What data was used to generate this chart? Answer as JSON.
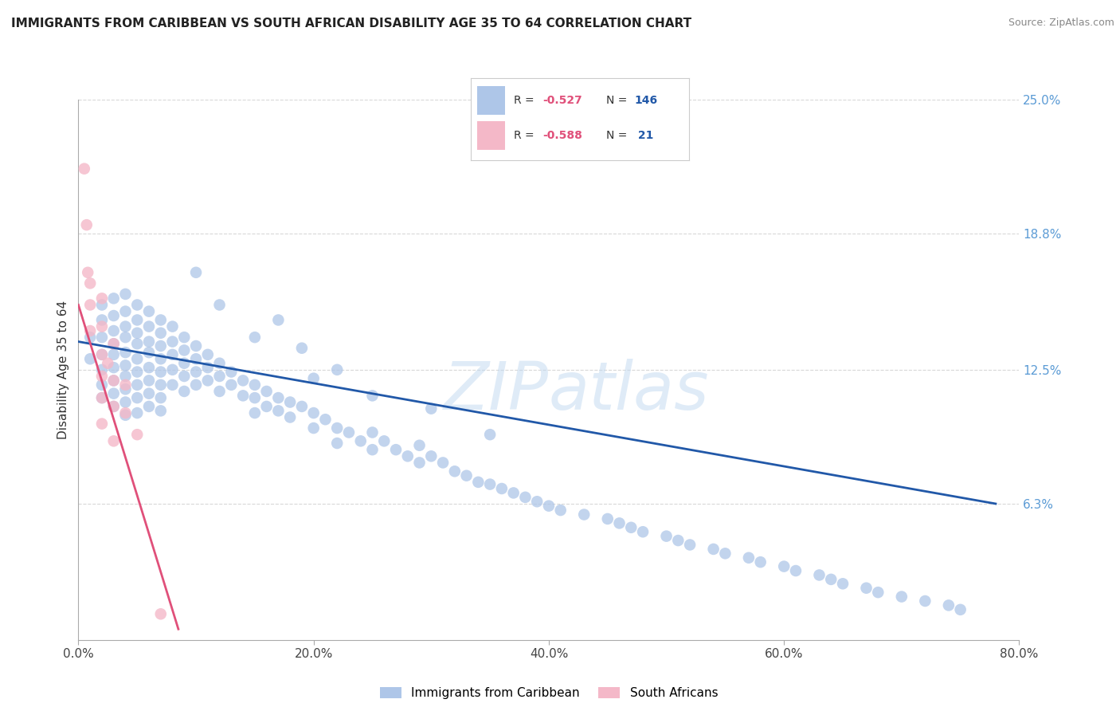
{
  "title": "IMMIGRANTS FROM CARIBBEAN VS SOUTH AFRICAN DISABILITY AGE 35 TO 64 CORRELATION CHART",
  "source": "Source: ZipAtlas.com",
  "ylabel": "Disability Age 35 to 64",
  "xlim": [
    0.0,
    0.8
  ],
  "ylim": [
    0.0,
    0.25
  ],
  "xtick_labels": [
    "0.0%",
    "20.0%",
    "40.0%",
    "60.0%",
    "80.0%"
  ],
  "xtick_vals": [
    0.0,
    0.2,
    0.4,
    0.6,
    0.8
  ],
  "ytick_labels_right": [
    "6.3%",
    "12.5%",
    "18.8%",
    "25.0%"
  ],
  "ytick_vals_right": [
    0.063,
    0.125,
    0.188,
    0.25
  ],
  "blue_R": -0.527,
  "blue_N": 146,
  "pink_R": -0.588,
  "pink_N": 21,
  "blue_color": "#aec6e8",
  "blue_line_color": "#2158a8",
  "pink_color": "#f4b8c8",
  "pink_line_color": "#e0507a",
  "legend_label_blue": "Immigrants from Caribbean",
  "legend_label_pink": "South Africans",
  "background_color": "#ffffff",
  "blue_line_x0": 0.0,
  "blue_line_y0": 0.138,
  "blue_line_x1": 0.78,
  "blue_line_y1": 0.063,
  "pink_line_x0": 0.0,
  "pink_line_y0": 0.155,
  "pink_line_x1": 0.085,
  "pink_line_y1": 0.005,
  "blue_scatter_x": [
    0.01,
    0.01,
    0.02,
    0.02,
    0.02,
    0.02,
    0.02,
    0.02,
    0.02,
    0.03,
    0.03,
    0.03,
    0.03,
    0.03,
    0.03,
    0.03,
    0.03,
    0.03,
    0.04,
    0.04,
    0.04,
    0.04,
    0.04,
    0.04,
    0.04,
    0.04,
    0.04,
    0.04,
    0.05,
    0.05,
    0.05,
    0.05,
    0.05,
    0.05,
    0.05,
    0.05,
    0.05,
    0.06,
    0.06,
    0.06,
    0.06,
    0.06,
    0.06,
    0.06,
    0.06,
    0.07,
    0.07,
    0.07,
    0.07,
    0.07,
    0.07,
    0.07,
    0.07,
    0.08,
    0.08,
    0.08,
    0.08,
    0.08,
    0.09,
    0.09,
    0.09,
    0.09,
    0.09,
    0.1,
    0.1,
    0.1,
    0.1,
    0.11,
    0.11,
    0.11,
    0.12,
    0.12,
    0.12,
    0.13,
    0.13,
    0.14,
    0.14,
    0.15,
    0.15,
    0.15,
    0.16,
    0.16,
    0.17,
    0.17,
    0.18,
    0.18,
    0.19,
    0.2,
    0.2,
    0.21,
    0.22,
    0.22,
    0.23,
    0.24,
    0.25,
    0.25,
    0.26,
    0.27,
    0.28,
    0.29,
    0.29,
    0.3,
    0.31,
    0.32,
    0.33,
    0.34,
    0.35,
    0.36,
    0.37,
    0.38,
    0.39,
    0.4,
    0.41,
    0.43,
    0.45,
    0.46,
    0.47,
    0.48,
    0.5,
    0.51,
    0.52,
    0.54,
    0.55,
    0.57,
    0.58,
    0.6,
    0.61,
    0.63,
    0.64,
    0.65,
    0.67,
    0.68,
    0.7,
    0.72,
    0.74,
    0.75,
    0.3,
    0.35,
    0.25,
    0.2,
    0.1,
    0.12,
    0.15,
    0.22,
    0.17,
    0.19
  ],
  "blue_scatter_y": [
    0.14,
    0.13,
    0.155,
    0.148,
    0.14,
    0.132,
    0.125,
    0.118,
    0.112,
    0.158,
    0.15,
    0.143,
    0.137,
    0.132,
    0.126,
    0.12,
    0.114,
    0.108,
    0.16,
    0.152,
    0.145,
    0.14,
    0.133,
    0.127,
    0.122,
    0.116,
    0.11,
    0.104,
    0.155,
    0.148,
    0.142,
    0.137,
    0.13,
    0.124,
    0.118,
    0.112,
    0.105,
    0.152,
    0.145,
    0.138,
    0.133,
    0.126,
    0.12,
    0.114,
    0.108,
    0.148,
    0.142,
    0.136,
    0.13,
    0.124,
    0.118,
    0.112,
    0.106,
    0.145,
    0.138,
    0.132,
    0.125,
    0.118,
    0.14,
    0.134,
    0.128,
    0.122,
    0.115,
    0.136,
    0.13,
    0.124,
    0.118,
    0.132,
    0.126,
    0.12,
    0.128,
    0.122,
    0.115,
    0.124,
    0.118,
    0.12,
    0.113,
    0.118,
    0.112,
    0.105,
    0.115,
    0.108,
    0.112,
    0.106,
    0.11,
    0.103,
    0.108,
    0.105,
    0.098,
    0.102,
    0.098,
    0.091,
    0.096,
    0.092,
    0.096,
    0.088,
    0.092,
    0.088,
    0.085,
    0.082,
    0.09,
    0.085,
    0.082,
    0.078,
    0.076,
    0.073,
    0.072,
    0.07,
    0.068,
    0.066,
    0.064,
    0.062,
    0.06,
    0.058,
    0.056,
    0.054,
    0.052,
    0.05,
    0.048,
    0.046,
    0.044,
    0.042,
    0.04,
    0.038,
    0.036,
    0.034,
    0.032,
    0.03,
    0.028,
    0.026,
    0.024,
    0.022,
    0.02,
    0.018,
    0.016,
    0.014,
    0.107,
    0.095,
    0.113,
    0.121,
    0.17,
    0.155,
    0.14,
    0.125,
    0.148,
    0.135
  ],
  "pink_scatter_x": [
    0.005,
    0.007,
    0.008,
    0.01,
    0.01,
    0.01,
    0.02,
    0.02,
    0.02,
    0.02,
    0.02,
    0.02,
    0.025,
    0.03,
    0.03,
    0.03,
    0.03,
    0.04,
    0.04,
    0.05,
    0.07
  ],
  "pink_scatter_y": [
    0.218,
    0.192,
    0.17,
    0.165,
    0.155,
    0.143,
    0.158,
    0.145,
    0.132,
    0.122,
    0.112,
    0.1,
    0.128,
    0.137,
    0.12,
    0.108,
    0.092,
    0.118,
    0.105,
    0.095,
    0.012
  ]
}
